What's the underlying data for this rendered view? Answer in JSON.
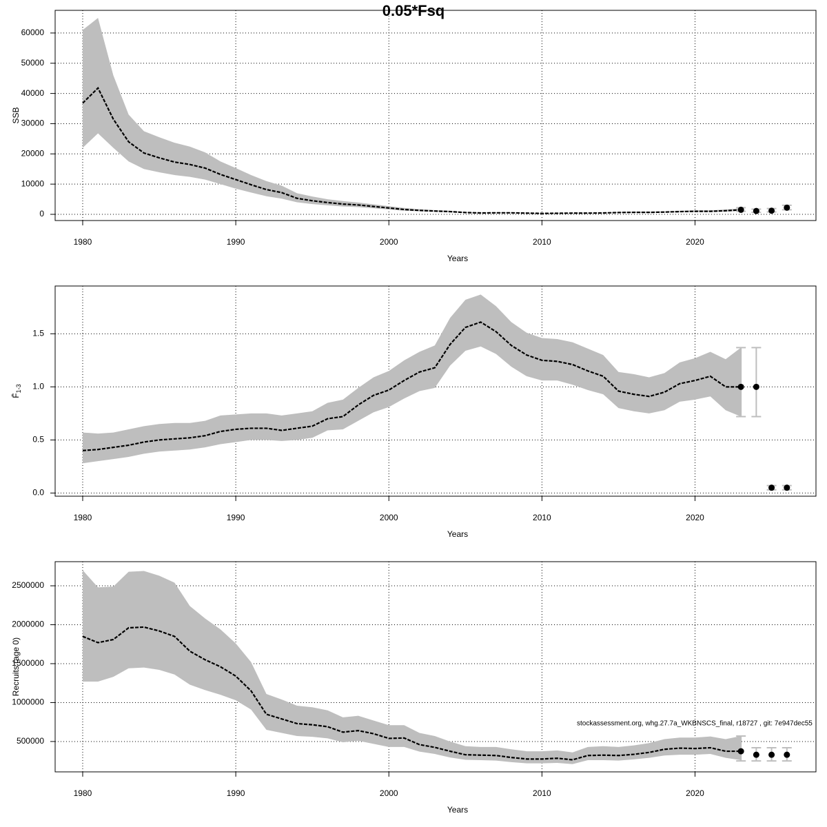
{
  "title": "0.05*Fsq",
  "chart_data": [
    {
      "type": "line",
      "xlabel": "Years",
      "ylabel": "SSB",
      "grid": true,
      "line_color": "#000000",
      "band_color": "#bebebe",
      "point_color": "#000000",
      "errorbar_color": "#bebebe",
      "xlim": [
        1978.2,
        2027.9
      ],
      "xticks": [
        1980,
        1990,
        2000,
        2010,
        2020
      ],
      "ylim": [
        -2050,
        67500
      ],
      "yticks": [
        0,
        10000,
        20000,
        30000,
        40000,
        50000,
        60000
      ],
      "x": [
        1980,
        1981,
        1982,
        1983,
        1984,
        1985,
        1986,
        1987,
        1988,
        1989,
        1990,
        1991,
        1992,
        1993,
        1994,
        1995,
        1996,
        1997,
        1998,
        1999,
        2000,
        2001,
        2002,
        2003,
        2004,
        2005,
        2006,
        2007,
        2008,
        2009,
        2010,
        2011,
        2012,
        2013,
        2014,
        2015,
        2016,
        2017,
        2018,
        2019,
        2020,
        2021,
        2022,
        2023
      ],
      "values": [
        36800,
        41800,
        31500,
        24000,
        20300,
        18700,
        17300,
        16500,
        15300,
        13200,
        11500,
        9800,
        8200,
        7200,
        5300,
        4500,
        3900,
        3400,
        3100,
        2600,
        2100,
        1600,
        1300,
        1100,
        900,
        600,
        450,
        500,
        500,
        400,
        300,
        350,
        400,
        400,
        450,
        600,
        650,
        650,
        750,
        900,
        1000,
        1000,
        1200,
        1500
      ],
      "lower": [
        22000,
        26800,
        22000,
        17500,
        15000,
        13900,
        13000,
        12400,
        11500,
        10000,
        8500,
        7200,
        6000,
        5200,
        4000,
        3400,
        3000,
        2600,
        2400,
        2000,
        1600,
        1200,
        1000,
        800,
        650,
        450,
        330,
        370,
        370,
        300,
        220,
        260,
        290,
        290,
        330,
        450,
        480,
        480,
        550,
        650,
        750,
        750,
        900,
        1100
      ],
      "upper": [
        61000,
        65000,
        46000,
        33000,
        27500,
        25500,
        23700,
        22400,
        20500,
        17500,
        15300,
        13000,
        11000,
        9500,
        7000,
        5900,
        5000,
        4400,
        3900,
        3300,
        2700,
        2100,
        1700,
        1400,
        1200,
        800,
        600,
        680,
        680,
        550,
        420,
        480,
        550,
        550,
        600,
        800,
        880,
        880,
        1000,
        1200,
        1350,
        1350,
        1600,
        2000
      ],
      "points": {
        "x": [
          2023,
          2024,
          2025,
          2026
        ],
        "values": [
          1500,
          1100,
          1200,
          2200
        ],
        "lower": [
          1000,
          700,
          800,
          1500
        ],
        "upper": [
          2200,
          1700,
          1900,
          3000
        ]
      }
    },
    {
      "type": "line",
      "xlabel": "Years",
      "ylabel": "F̄",
      "ylabel_sub": "1-3",
      "grid": true,
      "line_color": "#000000",
      "band_color": "#bebebe",
      "point_color": "#000000",
      "errorbar_color": "#bebebe",
      "xlim": [
        1978.2,
        2027.9
      ],
      "xticks": [
        1980,
        1990,
        2000,
        2010,
        2020
      ],
      "ylim": [
        -0.03,
        1.95
      ],
      "yticks": [
        {
          "value": 0,
          "label": "0.0"
        },
        0.5,
        {
          "value": 1,
          "label": "1.0"
        },
        1.5
      ],
      "x": [
        1980,
        1981,
        1982,
        1983,
        1984,
        1985,
        1986,
        1987,
        1988,
        1989,
        1990,
        1991,
        1992,
        1993,
        1994,
        1995,
        1996,
        1997,
        1998,
        1999,
        2000,
        2001,
        2002,
        2003,
        2004,
        2005,
        2006,
        2007,
        2008,
        2009,
        2010,
        2011,
        2012,
        2013,
        2014,
        2015,
        2016,
        2017,
        2018,
        2019,
        2020,
        2021,
        2022,
        2023
      ],
      "values": [
        0.4,
        0.41,
        0.43,
        0.45,
        0.48,
        0.5,
        0.51,
        0.52,
        0.54,
        0.58,
        0.6,
        0.61,
        0.61,
        0.59,
        0.61,
        0.63,
        0.7,
        0.72,
        0.83,
        0.92,
        0.97,
        1.06,
        1.14,
        1.18,
        1.4,
        1.56,
        1.61,
        1.52,
        1.39,
        1.3,
        1.25,
        1.24,
        1.21,
        1.15,
        1.1,
        0.96,
        0.93,
        0.91,
        0.95,
        1.03,
        1.06,
        1.1,
        1.0,
        1.0
      ],
      "lower": [
        0.28,
        0.3,
        0.32,
        0.34,
        0.37,
        0.39,
        0.4,
        0.41,
        0.43,
        0.46,
        0.48,
        0.5,
        0.5,
        0.49,
        0.5,
        0.52,
        0.59,
        0.6,
        0.68,
        0.76,
        0.81,
        0.89,
        0.96,
        0.99,
        1.2,
        1.34,
        1.38,
        1.31,
        1.19,
        1.1,
        1.06,
        1.06,
        1.02,
        0.97,
        0.93,
        0.8,
        0.77,
        0.75,
        0.78,
        0.86,
        0.88,
        0.91,
        0.78,
        0.72
      ],
      "upper": [
        0.57,
        0.56,
        0.57,
        0.6,
        0.63,
        0.65,
        0.66,
        0.66,
        0.68,
        0.73,
        0.74,
        0.75,
        0.75,
        0.73,
        0.75,
        0.77,
        0.85,
        0.88,
        0.99,
        1.09,
        1.15,
        1.25,
        1.33,
        1.39,
        1.65,
        1.82,
        1.87,
        1.76,
        1.61,
        1.51,
        1.46,
        1.45,
        1.42,
        1.36,
        1.3,
        1.14,
        1.12,
        1.09,
        1.13,
        1.23,
        1.27,
        1.33,
        1.26,
        1.37
      ],
      "points": {
        "x": [
          2023,
          2024,
          2025,
          2026
        ],
        "values": [
          1.0,
          1.0,
          0.05,
          0.05
        ],
        "lower": [
          0.72,
          0.72,
          0.03,
          0.03
        ],
        "upper": [
          1.37,
          1.37,
          0.07,
          0.07
        ]
      }
    },
    {
      "type": "line",
      "xlabel": "Years",
      "ylabel": "Recruits (age 0)",
      "grid": true,
      "line_color": "#000000",
      "band_color": "#bebebe",
      "point_color": "#000000",
      "errorbar_color": "#bebebe",
      "annotation": "stockassessment.org, whg.27.7a_WKBNSCS_final, r18727 , git: 7e947dec55",
      "xlim": [
        1978.2,
        2027.9
      ],
      "xticks": [
        1980,
        1990,
        2000,
        2010,
        2020
      ],
      "ylim": [
        110000,
        2810000
      ],
      "yticks": [
        500000,
        1000000,
        1500000,
        2000000,
        2500000
      ],
      "x": [
        1980,
        1981,
        1982,
        1983,
        1984,
        1985,
        1986,
        1987,
        1988,
        1989,
        1990,
        1991,
        1992,
        1993,
        1994,
        1995,
        1996,
        1997,
        1998,
        1999,
        2000,
        2001,
        2002,
        2003,
        2004,
        2005,
        2006,
        2007,
        2008,
        2009,
        2010,
        2011,
        2012,
        2013,
        2014,
        2015,
        2016,
        2017,
        2018,
        2019,
        2020,
        2021,
        2022,
        2023
      ],
      "values": [
        1850000,
        1770000,
        1810000,
        1960000,
        1970000,
        1920000,
        1850000,
        1660000,
        1550000,
        1460000,
        1340000,
        1150000,
        850000,
        790000,
        730000,
        715000,
        690000,
        620000,
        640000,
        600000,
        540000,
        545000,
        460000,
        425000,
        375000,
        330000,
        325000,
        320000,
        295000,
        275000,
        275000,
        285000,
        265000,
        320000,
        325000,
        320000,
        335000,
        360000,
        400000,
        415000,
        410000,
        420000,
        375000,
        375000
      ],
      "lower": [
        1270000,
        1270000,
        1330000,
        1440000,
        1450000,
        1420000,
        1360000,
        1230000,
        1160000,
        1100000,
        1030000,
        910000,
        650000,
        610000,
        570000,
        560000,
        540000,
        490000,
        510000,
        470000,
        430000,
        430000,
        370000,
        340000,
        295000,
        265000,
        260000,
        255000,
        235000,
        220000,
        220000,
        225000,
        210000,
        260000,
        260000,
        255000,
        270000,
        290000,
        320000,
        330000,
        330000,
        340000,
        290000,
        260000
      ],
      "upper": [
        2700000,
        2480000,
        2490000,
        2680000,
        2690000,
        2630000,
        2540000,
        2240000,
        2080000,
        1940000,
        1760000,
        1520000,
        1110000,
        1040000,
        960000,
        940000,
        900000,
        810000,
        830000,
        770000,
        710000,
        710000,
        610000,
        570000,
        500000,
        440000,
        430000,
        430000,
        400000,
        375000,
        375000,
        385000,
        360000,
        430000,
        440000,
        430000,
        450000,
        480000,
        530000,
        550000,
        550000,
        565000,
        530000,
        570000
      ],
      "points": {
        "x": [
          2023,
          2024,
          2025,
          2026
        ],
        "values": [
          375000,
          330000,
          330000,
          330000
        ],
        "lower": [
          250000,
          250000,
          250000,
          250000
        ],
        "upper": [
          570000,
          420000,
          420000,
          420000
        ]
      }
    }
  ]
}
